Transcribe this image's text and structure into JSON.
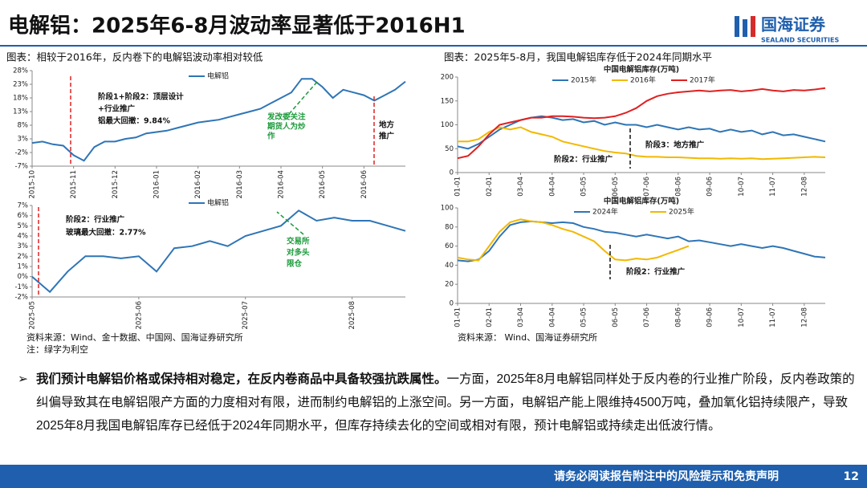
{
  "header": {
    "title": "电解铝：2025年6-8月波动率显著低于2016H1",
    "logo": "国海证券",
    "logo_sub": "SEALAND SECURITIES"
  },
  "captions": {
    "left": "图表：相较于2016年，反内卷下的电解铝波动率相对较低",
    "right": "图表：2025年5-8月，我国电解铝库存低于2024年同期水平"
  },
  "sources": {
    "left": "资料来源：Wind、金十数据、中国网、国海证券研究所",
    "left_note": "注：绿字为利空",
    "right": "资料来源：  Wind、国海证券研究所"
  },
  "chart_data": [
    {
      "type": "line",
      "categories": [
        "2015-10",
        null,
        null,
        null,
        "2015-11",
        null,
        null,
        null,
        "2015-12",
        null,
        null,
        null,
        "2016-01",
        null,
        null,
        null,
        "2016-02",
        null,
        null,
        null,
        "2016-03",
        null,
        null,
        null,
        "2016-04",
        null,
        null,
        null,
        "2016-05",
        null,
        null,
        null,
        "2016-06",
        null,
        null,
        null,
        null
      ],
      "series": [
        {
          "name": "电解铝",
          "color": "#2e75b6",
          "values": [
            1.5,
            2,
            1,
            0.5,
            -3,
            -5,
            0,
            2,
            2,
            3,
            3.5,
            5,
            5.5,
            6,
            7,
            8,
            9,
            9.5,
            10,
            11,
            12,
            13,
            14,
            16,
            18,
            20,
            25,
            25,
            22,
            18,
            21,
            20,
            19,
            17,
            19,
            21,
            24
          ]
        }
      ],
      "ylim": [
        -7,
        28
      ],
      "yticks": [
        {
          "value": -7,
          "label": "-7%"
        },
        {
          "value": -2,
          "label": "-2%"
        },
        {
          "value": 3,
          "label": "3%"
        },
        {
          "value": 8,
          "label": "8%"
        },
        {
          "value": 13,
          "label": "13%"
        },
        {
          "value": 18,
          "label": "18%"
        },
        {
          "value": 23,
          "label": "23%"
        },
        {
          "value": 28,
          "label": "28%"
        }
      ],
      "annotations": [
        "阶段1+阶段2：顶层设计",
        "+行业推广",
        "铝最大回撤：9.84%",
        "发改委关注",
        "期货人为炒",
        "作",
        "地方",
        "推广"
      ]
    },
    {
      "type": "line",
      "categories": [
        "2025-05",
        null,
        null,
        null,
        null,
        null,
        "2025-06",
        null,
        null,
        null,
        null,
        null,
        "2025-07",
        null,
        null,
        null,
        null,
        null,
        "2025-08",
        null,
        null,
        null
      ],
      "series": [
        {
          "name": "电解铝",
          "color": "#2e75b6",
          "values": [
            0,
            -1.5,
            0.5,
            2,
            2,
            1.8,
            2,
            0.5,
            2.8,
            3,
            3.5,
            3,
            4,
            4.5,
            5,
            6.5,
            5.5,
            5.8,
            5.5,
            5.5,
            5,
            4.5
          ]
        }
      ],
      "ylim": [
        -2,
        7
      ],
      "yticks": [
        {
          "value": -2,
          "label": "-2%"
        },
        {
          "value": -1,
          "label": "-1%"
        },
        {
          "value": 0,
          "label": "0%"
        },
        {
          "value": 1,
          "label": "1%"
        },
        {
          "value": 2,
          "label": "2%"
        },
        {
          "value": 3,
          "label": "3%"
        },
        {
          "value": 4,
          "label": "4%"
        },
        {
          "value": 5,
          "label": "5%"
        },
        {
          "value": 6,
          "label": "6%"
        },
        {
          "value": 7,
          "label": "7%"
        }
      ],
      "annotations": [
        "阶段2：行业推广",
        "玻璃最大回撤：2.77%",
        "交易所",
        "对多头",
        "限仓"
      ]
    },
    {
      "type": "line",
      "title": "中国电解铝库存(万吨)",
      "categories": [
        "01-01",
        null,
        null,
        "02-01",
        null,
        null,
        "03-04",
        null,
        null,
        "04-04",
        null,
        null,
        "05-05",
        null,
        null,
        "06-05",
        null,
        null,
        "07-06",
        null,
        null,
        "08-06",
        null,
        null,
        "09-06",
        null,
        null,
        "10-07",
        null,
        null,
        "11-07",
        null,
        null,
        "12-08",
        null,
        null
      ],
      "series": [
        {
          "name": "2015年",
          "color": "#2e75b6",
          "values": [
            55,
            50,
            60,
            75,
            90,
            100,
            110,
            115,
            118,
            115,
            110,
            112,
            105,
            108,
            100,
            105,
            100,
            100,
            95,
            100,
            95,
            90,
            95,
            90,
            92,
            85,
            90,
            85,
            88,
            80,
            85,
            78,
            80,
            75,
            70,
            65
          ]
        },
        {
          "name": "2016年",
          "color": "#f2b800",
          "values": [
            65,
            65,
            70,
            85,
            95,
            90,
            95,
            85,
            80,
            75,
            65,
            60,
            55,
            50,
            45,
            42,
            40,
            35,
            33,
            33,
            32,
            32,
            31,
            30,
            30,
            29,
            30,
            29,
            30,
            28,
            29,
            30,
            31,
            32,
            33,
            32
          ]
        },
        {
          "name": "2017年",
          "color": "#e02020",
          "values": [
            30,
            35,
            55,
            80,
            100,
            105,
            110,
            115,
            115,
            118,
            118,
            117,
            115,
            114,
            115,
            118,
            125,
            135,
            150,
            160,
            165,
            168,
            170,
            172,
            170,
            172,
            173,
            170,
            172,
            175,
            172,
            170,
            173,
            172,
            174,
            177
          ]
        }
      ],
      "ylim": [
        0,
        200
      ],
      "yticks": [
        0,
        50,
        100,
        150,
        200
      ],
      "annotations": [
        "阶段3：地方推广",
        "阶段2：行业推广"
      ]
    },
    {
      "type": "line",
      "title": "中国电解铝库存(万吨)",
      "categories": [
        "01-01",
        null,
        null,
        "02-01",
        null,
        null,
        "03-04",
        null,
        null,
        "04-04",
        null,
        null,
        "05-05",
        null,
        null,
        "06-05",
        null,
        null,
        "07-06",
        null,
        null,
        "08-06",
        null,
        null,
        "09-06",
        null,
        null,
        "10-07",
        null,
        null,
        "11-07",
        null,
        null,
        "12-08",
        null,
        null
      ],
      "series": [
        {
          "name": "2024年",
          "color": "#2e75b6",
          "values": [
            45,
            44,
            46,
            55,
            70,
            82,
            85,
            86,
            85,
            84,
            85,
            84,
            80,
            78,
            75,
            74,
            72,
            70,
            72,
            70,
            68,
            70,
            65,
            66,
            64,
            62,
            60,
            62,
            60,
            58,
            60,
            58,
            55,
            52,
            49,
            48
          ]
        },
        {
          "name": "2025年",
          "color": "#f2b800",
          "values": [
            48,
            46,
            45,
            60,
            75,
            85,
            88,
            86,
            85,
            82,
            78,
            75,
            70,
            65,
            55,
            46,
            45,
            47,
            46,
            48,
            52,
            56,
            60,
            null,
            null,
            null,
            null,
            null,
            null,
            null,
            null,
            null,
            null,
            null,
            null,
            null
          ]
        }
      ],
      "ylim": [
        0,
        100
      ],
      "yticks": [
        0,
        20,
        40,
        60,
        80,
        100
      ],
      "annotations": [
        "阶段2：行业推广"
      ]
    }
  ],
  "body": {
    "bold": "我们预计电解铝价格或保持相对稳定，在反内卷商品中具备较强抗跌属性。",
    "text": "一方面，2025年8月电解铝同样处于反内卷的行业推广阶段，反内卷政策的纠偏导致其在电解铝限产方面的力度相对有限，进而制约电解铝的上涨空间。另一方面，电解铝产能上限维持4500万吨，叠加氧化铝持续限产，导致2025年8月我国电解铝库存已经低于2024年同期水平，但库存持续去化的空间或相对有限，预计电解铝或持续走出低波行情。"
  },
  "footer": {
    "disclaimer": "请务必阅读报告附注中的风险提示和免责声明",
    "page": "12"
  }
}
